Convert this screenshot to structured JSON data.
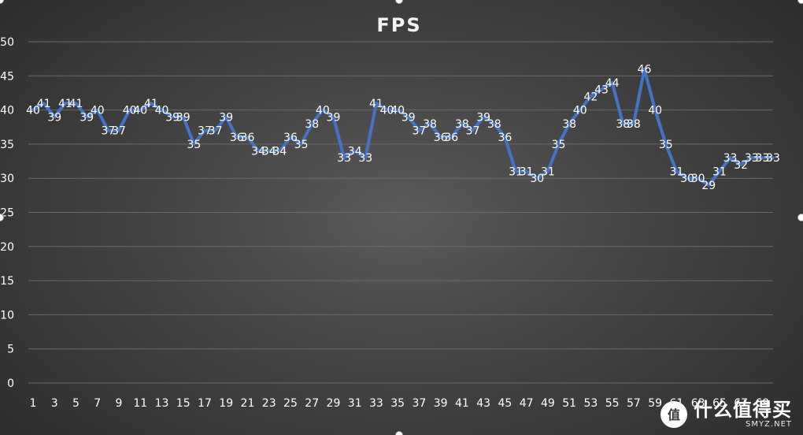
{
  "chart_data": {
    "type": "line",
    "title": "FPS",
    "xlabel": "",
    "ylabel": "",
    "ylim": [
      0,
      50
    ],
    "y_ticks": [
      "0",
      "5",
      "10",
      "15",
      "20",
      "25",
      "30",
      "35",
      "40",
      "45",
      "50"
    ],
    "x_ticks": [
      "1",
      "3",
      "5",
      "7",
      "9",
      "11",
      "13",
      "15",
      "17",
      "19",
      "21",
      "23",
      "25",
      "27",
      "29",
      "31",
      "33",
      "35",
      "37",
      "39",
      "41",
      "43",
      "45",
      "47",
      "49",
      "51",
      "53",
      "55",
      "57",
      "59",
      "61",
      "63",
      "65",
      "67",
      "69"
    ],
    "x": [
      1,
      2,
      3,
      4,
      5,
      6,
      7,
      8,
      9,
      10,
      11,
      12,
      13,
      14,
      15,
      16,
      17,
      18,
      19,
      20,
      21,
      22,
      23,
      24,
      25,
      26,
      27,
      28,
      29,
      30,
      31,
      32,
      33,
      34,
      35,
      36,
      37,
      38,
      39,
      40,
      41,
      42,
      43,
      44,
      45,
      46,
      47,
      48,
      49,
      50,
      51,
      52,
      53,
      54,
      55,
      56,
      57,
      58,
      59,
      60,
      61,
      62,
      63,
      64,
      65,
      66,
      67,
      68,
      69,
      70
    ],
    "values": [
      40,
      41,
      39,
      41,
      41,
      39,
      40,
      37,
      37,
      40,
      40,
      41,
      40,
      39,
      39,
      35,
      37,
      37,
      39,
      36,
      36,
      34,
      34,
      34,
      36,
      35,
      38,
      40,
      39,
      33,
      34,
      33,
      41,
      40,
      40,
      39,
      37,
      38,
      36,
      36,
      38,
      37,
      39,
      38,
      36,
      31,
      31,
      30,
      31,
      35,
      38,
      40,
      42,
      43,
      44,
      38,
      38,
      46,
      40,
      35,
      31,
      30,
      30,
      29,
      31,
      33,
      32,
      33,
      33,
      33
    ],
    "grid": true,
    "legend": "none",
    "data_labels": true,
    "colors": {
      "line": "#4472c4",
      "text": "#ffffff",
      "grid": "#6a6a6a"
    }
  },
  "watermark": {
    "text_cn": "什么值得买",
    "text_en": "SMYZ.NET",
    "icon": "smzdm-logo-icon"
  }
}
